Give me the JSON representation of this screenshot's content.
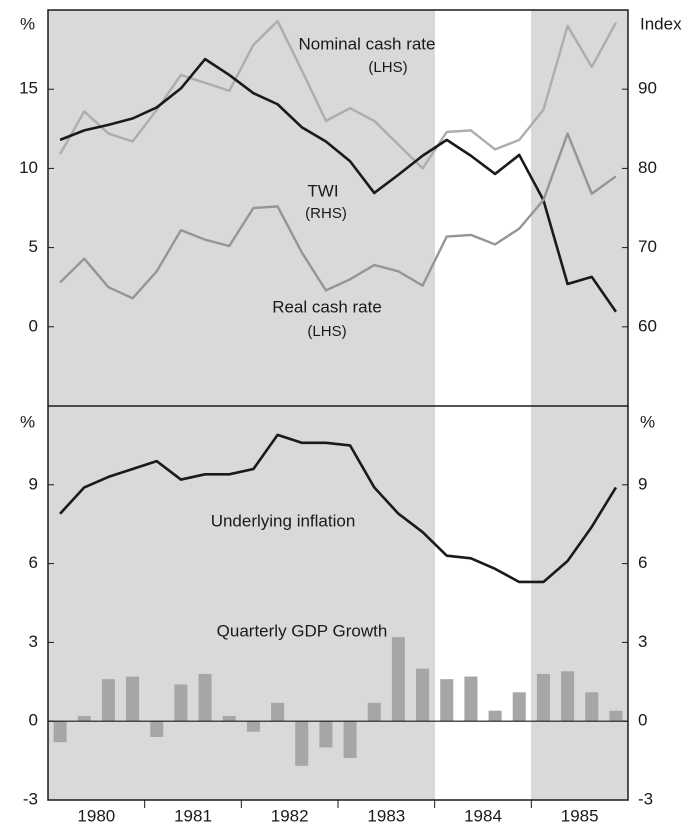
{
  "chart_data": [
    {
      "type": "line",
      "y_unit": "%",
      "y2_unit": "Index",
      "ylim": [
        -5,
        20
      ],
      "yticks": [
        0,
        5,
        10,
        15
      ],
      "y2lim": [
        50,
        100
      ],
      "y2ticks": [
        60,
        70,
        80,
        90
      ],
      "years": [
        "1980",
        "1981",
        "1982",
        "1983",
        "1984",
        "1985"
      ],
      "series": [
        {
          "name": "Nominal cash rate",
          "note": "(LHS)",
          "color": "#adadad",
          "axis": "y",
          "values": [
            10.9,
            13.6,
            12.2,
            11.7,
            13.7,
            15.9,
            15.4,
            14.9,
            17.8,
            19.3,
            16.2,
            13.0,
            13.8,
            13.0,
            11.5,
            10.0,
            12.3,
            12.4,
            11.2,
            11.8,
            13.7,
            19.0,
            16.4,
            19.2
          ]
        },
        {
          "name": "TWI",
          "note": "(RHS)",
          "color": "#1a1a1a",
          "axis": "y2",
          "values": [
            83.6,
            84.8,
            85.5,
            86.3,
            87.7,
            90.1,
            93.8,
            91.8,
            89.5,
            88.1,
            85.2,
            83.4,
            80.9,
            76.9,
            79.2,
            81.6,
            83.6,
            81.6,
            79.3,
            81.7,
            76.0,
            65.4,
            66.3,
            61.9
          ]
        },
        {
          "name": "Real cash rate",
          "note": "(LHS)",
          "color": "#959595",
          "axis": "y",
          "values": [
            2.8,
            4.3,
            2.5,
            1.8,
            3.5,
            6.1,
            5.5,
            5.1,
            7.5,
            7.6,
            4.7,
            2.3,
            3.0,
            3.9,
            3.5,
            2.6,
            5.7,
            5.8,
            5.2,
            6.2,
            8.0,
            12.2,
            8.4,
            9.5
          ]
        }
      ]
    },
    {
      "type": "combo",
      "y_unit": "%",
      "y2_unit": "%",
      "ylim": [
        -3,
        12
      ],
      "yticks": [
        -3,
        0,
        3,
        6,
        9
      ],
      "y2lim": [
        -3,
        12
      ],
      "y2ticks": [
        -3,
        0,
        3,
        6,
        9
      ],
      "series": [
        {
          "name": "Underlying inflation",
          "kind": "line",
          "color": "#1a1a1a",
          "values": [
            7.9,
            8.9,
            9.3,
            9.6,
            9.9,
            9.2,
            9.4,
            9.4,
            9.6,
            10.9,
            10.6,
            10.6,
            10.5,
            8.9,
            7.9,
            7.2,
            6.3,
            6.2,
            5.8,
            5.3,
            5.3,
            6.1,
            7.4,
            8.9
          ]
        },
        {
          "name": "Quarterly GDP Growth",
          "kind": "bar",
          "color": "#a6a6a6",
          "values": [
            -0.8,
            0.2,
            1.6,
            1.7,
            -0.6,
            1.4,
            1.8,
            0.2,
            -0.4,
            0.7,
            -1.7,
            -1.0,
            -1.4,
            0.7,
            3.2,
            2.0,
            1.6,
            1.7,
            0.4,
            1.1,
            1.8,
            1.9,
            1.1,
            0.4
          ]
        }
      ]
    }
  ]
}
